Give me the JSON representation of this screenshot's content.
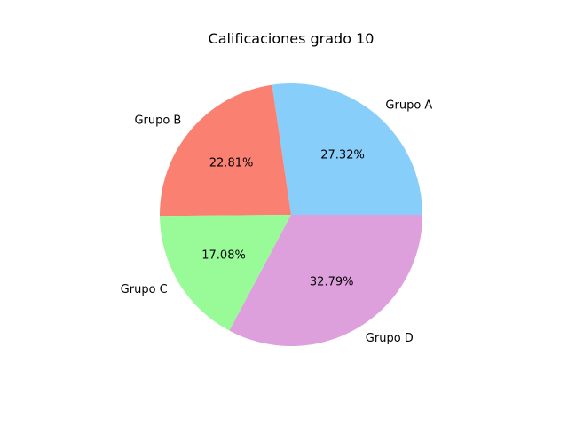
{
  "chart_data": {
    "type": "pie",
    "title": "Calificaciones grado 10",
    "categories": [
      "Grupo A",
      "Grupo B",
      "Grupo C",
      "Grupo D"
    ],
    "values": [
      27.32,
      22.81,
      17.08,
      32.79
    ],
    "value_labels": [
      "27.32%",
      "22.81%",
      "17.08%",
      "32.79%"
    ],
    "colors": [
      "#87cefa",
      "#fa8072",
      "#98fb98",
      "#dda0dd"
    ],
    "start_angle": 0,
    "direction": "counterclockwise",
    "legend": "none"
  }
}
